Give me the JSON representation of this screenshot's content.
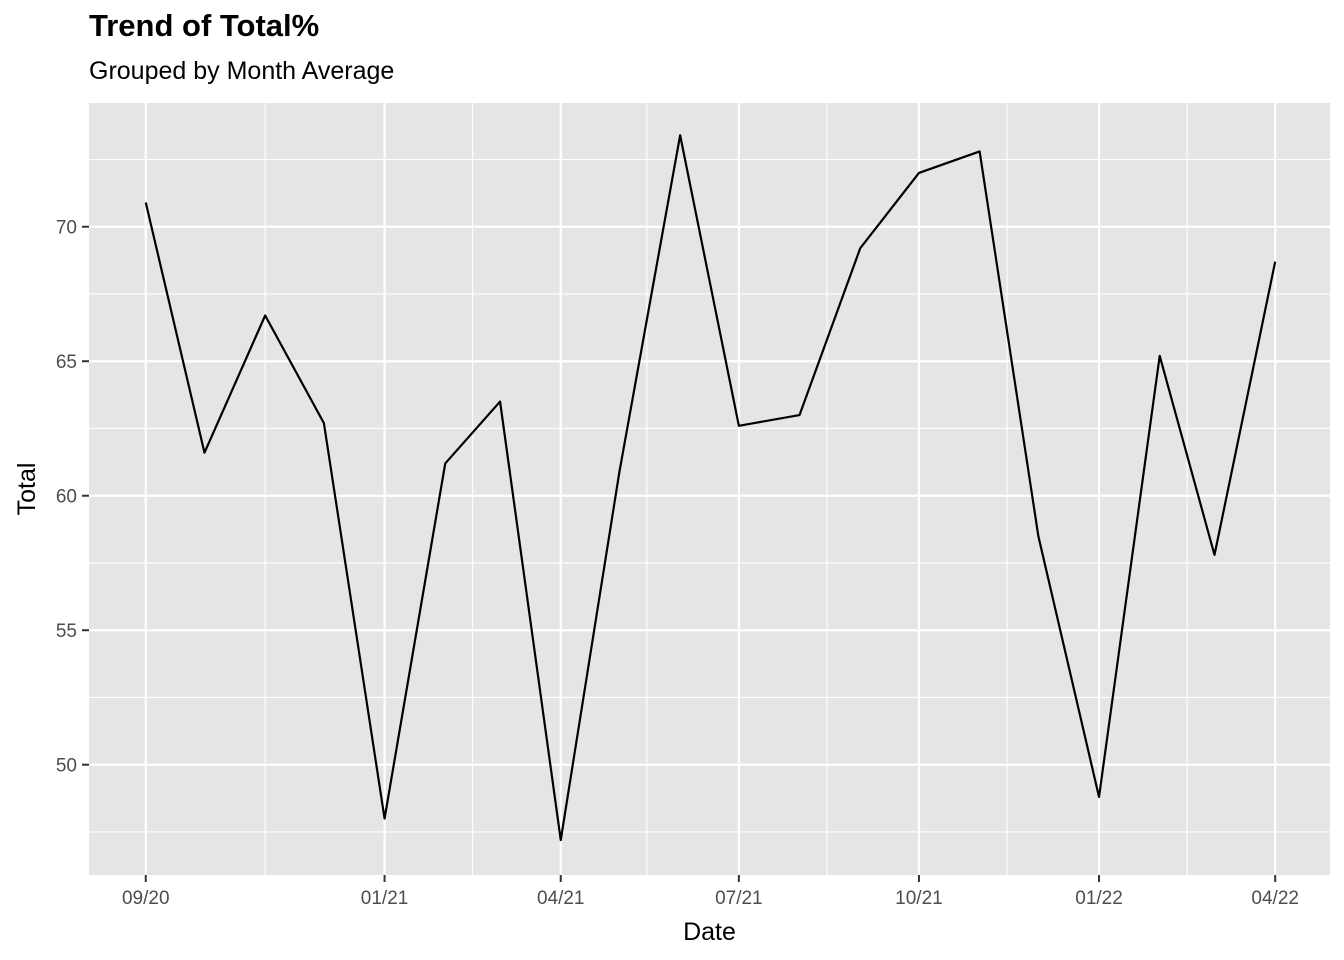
{
  "chart_data": {
    "type": "line",
    "title": "Trend of Total%",
    "subtitle": "Grouped by Month Average",
    "xlabel": "Date",
    "ylabel": "Total",
    "x": [
      "2020-09",
      "2020-10",
      "2020-11",
      "2020-12",
      "2021-01",
      "2021-02",
      "2021-03",
      "2021-04",
      "2021-05",
      "2021-06",
      "2021-07",
      "2021-08",
      "2021-09",
      "2021-10",
      "2021-11",
      "2021-12",
      "2022-01",
      "2022-02",
      "2022-03",
      "2022-04"
    ],
    "series": [
      {
        "values": [
          70.9,
          61.6,
          66.7,
          62.7,
          48.0,
          61.2,
          63.5,
          47.2,
          60.9,
          73.4,
          62.6,
          63.0,
          69.2,
          72.0,
          72.8,
          58.5,
          48.8,
          65.2,
          57.8,
          68.7
        ]
      }
    ],
    "x_ticks": [
      "09/20",
      "01/21",
      "04/21",
      "07/21",
      "10/21",
      "01/22",
      "04/22"
    ],
    "x_tick_dates": [
      "2020-09-01",
      "2021-01-01",
      "2021-04-01",
      "2021-07-01",
      "2021-10-01",
      "2022-01-01",
      "2022-04-01"
    ],
    "x_minor_dates": [
      "2020-11-01",
      "2021-02-15",
      "2021-05-15",
      "2021-08-15",
      "2021-11-15",
      "2022-02-15"
    ],
    "xlim": [
      "2020-08-03",
      "2022-04-29"
    ],
    "y_ticks": [
      50,
      55,
      60,
      65,
      70
    ],
    "ylim": [
      45.9,
      74.6
    ],
    "grid": true,
    "line_color": "#000000",
    "panel_color": "#e5e5e5",
    "grid_color": "#ffffff"
  }
}
